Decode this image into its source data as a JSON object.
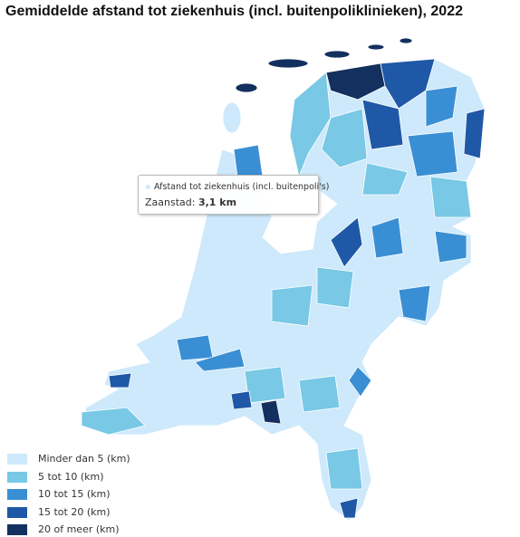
{
  "title": "Gemiddelde afstand tot ziekenhuis (incl. buitenpoliklinieken), 2022",
  "tooltip": {
    "series_name": "Afstand tot ziekenhuis (incl. buitenpoli's)",
    "region": "Zaanstad:",
    "value": "3,1 km"
  },
  "legend": [
    {
      "label": "Minder dan 5 (km)",
      "color": "#cde9fb"
    },
    {
      "label": "5 tot 10 (km)",
      "color": "#78c8e6"
    },
    {
      "label": "10 tot 15 (km)",
      "color": "#3a8fd4"
    },
    {
      "label": "15 tot 20 (km)",
      "color": "#1f58a6"
    },
    {
      "label": "20 of meer (km)",
      "color": "#13305f"
    }
  ]
}
